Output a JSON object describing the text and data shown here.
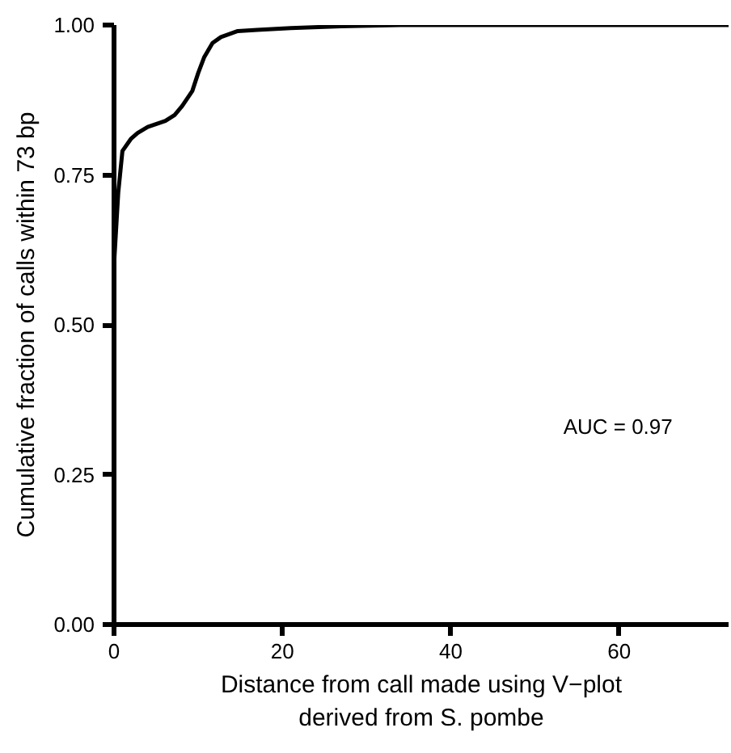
{
  "chart_data": {
    "type": "line",
    "xlabel": "Distance from call made using V−plot\nderived from S. pombe",
    "ylabel": "Cumulative fraction of calls within 73 bp",
    "xlim": [
      0,
      73
    ],
    "ylim": [
      0,
      1
    ],
    "xticks": [
      0,
      20,
      40,
      60
    ],
    "yticks": [
      {
        "value": 0,
        "label": "0.00"
      },
      {
        "value": 0.25,
        "label": "0.25"
      },
      {
        "value": 0.5,
        "label": "0.50"
      },
      {
        "value": 0.75,
        "label": "0.75"
      },
      {
        "value": 1,
        "label": "1.00"
      }
    ],
    "grid": false,
    "marker": "none",
    "line_style": "solid",
    "annotations": [
      "AUC = 0.97"
    ],
    "series": [
      {
        "color": "#000000",
        "x": [
          0,
          0.5,
          1,
          2,
          2.8,
          4,
          6.1,
          7.2,
          8.1,
          9.3,
          10,
          10.7,
          11.7,
          12.7,
          14.7,
          17,
          21,
          27,
          34,
          50,
          73
        ],
        "values": [
          0.6,
          0.72,
          0.79,
          0.81,
          0.82,
          0.83,
          0.84,
          0.85,
          0.865,
          0.89,
          0.92,
          0.946,
          0.97,
          0.98,
          0.99,
          0.992,
          0.995,
          0.998,
          1.0,
          1.0,
          1.0
        ]
      }
    ]
  }
}
